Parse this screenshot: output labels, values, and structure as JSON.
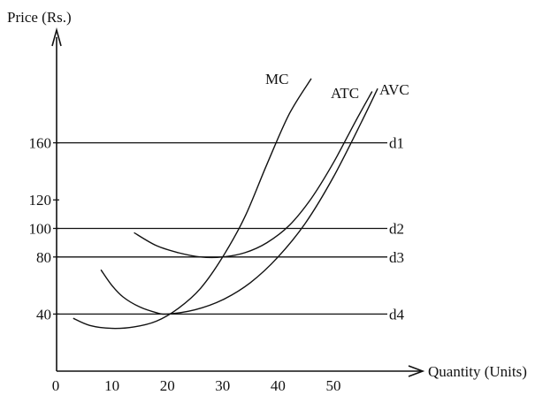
{
  "chart_data": {
    "type": "line",
    "ylabel": "Price (Rs.)",
    "xlabel": "Quantity (Units)",
    "origin_label": "0",
    "xlim": [
      0,
      60
    ],
    "ylim": [
      0,
      200
    ],
    "x_ticks": [
      {
        "value": 10,
        "label": "10"
      },
      {
        "value": 20,
        "label": "20"
      },
      {
        "value": 30,
        "label": "30"
      },
      {
        "value": 40,
        "label": "40"
      },
      {
        "value": 50,
        "label": "50"
      }
    ],
    "y_ticks": [
      {
        "value": 40,
        "label": "40"
      },
      {
        "value": 80,
        "label": "80"
      },
      {
        "value": 100,
        "label": "100"
      },
      {
        "value": 120,
        "label": "120"
      },
      {
        "value": 160,
        "label": "160"
      }
    ],
    "demand_lines": [
      {
        "name": "d1",
        "y": 160
      },
      {
        "name": "d2",
        "y": 100
      },
      {
        "name": "d3",
        "y": 80
      },
      {
        "name": "d4",
        "y": 40
      }
    ],
    "series": [
      {
        "name": "MC",
        "x": [
          3,
          6,
          10,
          14,
          18,
          22,
          26,
          30,
          34,
          38,
          42,
          46
        ],
        "y": [
          37,
          32,
          30,
          31,
          35,
          44,
          58,
          80,
          108,
          145,
          180,
          205
        ]
      },
      {
        "name": "ATC",
        "x": [
          14,
          18,
          22,
          26,
          30,
          34,
          38,
          42,
          46,
          50,
          54,
          57
        ],
        "y": [
          97,
          88,
          83,
          80,
          80,
          83,
          90,
          102,
          121,
          146,
          175,
          196
        ]
      },
      {
        "name": "AVC",
        "x": [
          8,
          10,
          12,
          15,
          18,
          20,
          25,
          30,
          35,
          40,
          45,
          50,
          55,
          58
        ],
        "y": [
          71,
          60,
          52,
          45,
          41,
          40,
          43,
          50,
          62,
          80,
          104,
          136,
          174,
          198
        ]
      }
    ]
  }
}
